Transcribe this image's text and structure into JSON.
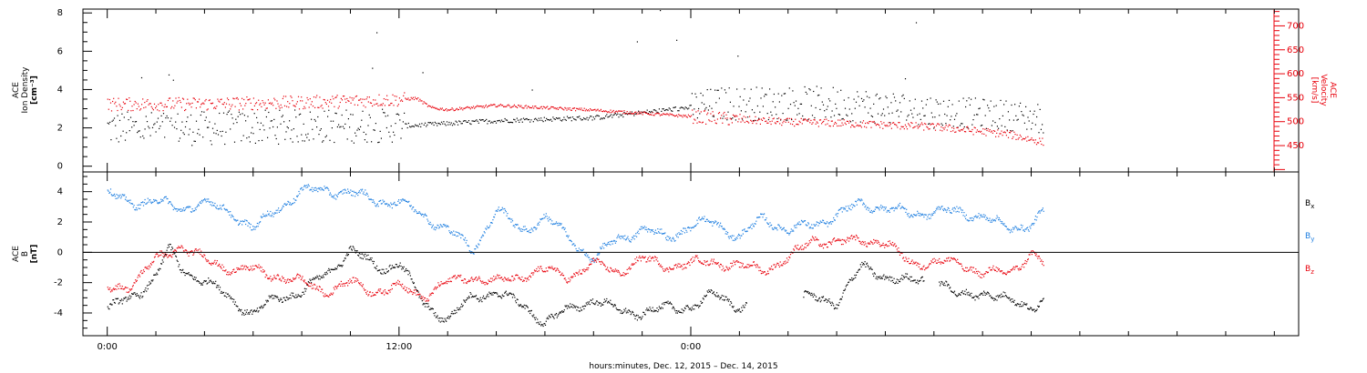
{
  "chart_data": [
    {
      "type": "scatter",
      "panel": "plasma",
      "ylabel_left": [
        "ACE",
        "Ion Density",
        "[cm⁻³]"
      ],
      "ylabel_right": [
        "ACE",
        "Velocity",
        "[km/s]"
      ],
      "ylim_left": [
        -0.3,
        8.2
      ],
      "ylim_right": [
        395,
        735
      ],
      "yticks_left": [
        "0",
        "2",
        "4",
        "6",
        "8"
      ],
      "yticks_right": [
        "450",
        "500",
        "550",
        "600",
        "650",
        "700"
      ],
      "xlim_hours": [
        -1,
        49
      ],
      "colors": {
        "density": "#000000",
        "velocity": "#e8000b"
      },
      "density_trend": {
        "x_hours": [
          0,
          4,
          8,
          12.5,
          13.3,
          16,
          20,
          24,
          25.5,
          30,
          34,
          37,
          38.5
        ],
        "y": [
          2.0,
          2.0,
          2.1,
          2.15,
          2.2,
          2.4,
          2.55,
          3.1,
          3.3,
          3.3,
          2.9,
          2.7,
          2.5
        ]
      },
      "velocity_trend": {
        "x_hours": [
          0,
          4,
          8,
          12.0,
          12.7,
          13.3,
          14.0,
          16,
          20,
          24,
          26,
          28,
          30,
          34,
          37,
          38.5
        ],
        "y": [
          537,
          538,
          541,
          547,
          550,
          530,
          526,
          535,
          525,
          512,
          505,
          500,
          498,
          490,
          475,
          458
        ]
      }
    },
    {
      "type": "scatter",
      "panel": "magnetic-field",
      "ylabel_left": [
        "ACE",
        "B",
        "[nT]"
      ],
      "ylim": [
        -5.5,
        5.3
      ],
      "yticks": [
        "-4",
        "-2",
        "0",
        "2",
        "4"
      ],
      "xlim_hours": [
        -1,
        49
      ],
      "zero_line": true,
      "series": [
        {
          "name": "Bx",
          "label": "B",
          "subscript": "x",
          "color": "#000000",
          "x_hours": [
            0,
            1,
            2,
            2.5,
            3,
            3.5,
            4,
            5,
            6,
            7,
            8,
            9,
            10,
            11,
            11.5,
            12,
            13,
            14,
            15,
            16,
            17,
            18,
            19,
            20,
            21,
            22,
            23,
            24,
            25,
            26,
            27,
            28,
            29,
            30,
            31,
            32,
            33,
            34,
            35,
            36,
            37,
            38,
            38.5
          ],
          "y": [
            -3.7,
            -3.0,
            -1.5,
            0.2,
            -1.0,
            -1.5,
            -1.8,
            -3.0,
            -4.0,
            -3.0,
            -2.5,
            -1.5,
            0.3,
            -1.0,
            -1.0,
            -0.5,
            -3.5,
            -4.3,
            -3.0,
            -2.5,
            -3.5,
            -4.5,
            -3.8,
            -3.0,
            -3.9,
            -3.9,
            -3.7,
            -3.5,
            -2.8,
            -3.5,
            -3.3,
            -3.0,
            -3.0,
            -3.2,
            -1.0,
            -1.5,
            -2.0,
            -1.5,
            -3.0,
            -2.5,
            -3.2,
            -3.5,
            -3.0
          ]
        },
        {
          "name": "By",
          "label": "B",
          "subscript": "y",
          "color": "#1f7fe0",
          "x_hours": [
            0,
            1,
            2,
            3,
            4,
            5,
            6,
            7,
            8,
            9,
            10,
            11,
            12,
            13,
            14,
            15,
            16,
            17,
            18,
            19,
            20,
            21,
            22,
            23,
            24,
            25,
            26,
            27,
            28,
            29,
            30,
            31,
            32,
            33,
            34,
            35,
            36,
            37,
            38,
            38.5
          ],
          "y": [
            3.8,
            3.4,
            3.3,
            3.0,
            3.2,
            2.8,
            1.5,
            3.0,
            4.0,
            4.2,
            3.9,
            3.5,
            3.3,
            2.5,
            1.5,
            0.2,
            2.8,
            1.5,
            2.3,
            1.0,
            -0.5,
            1.0,
            1.5,
            1.0,
            1.8,
            2.0,
            1.0,
            2.3,
            1.5,
            1.8,
            2.5,
            3.2,
            3.0,
            2.5,
            2.8,
            2.6,
            2.5,
            1.5,
            2.0,
            2.6
          ]
        },
        {
          "name": "Bz",
          "label": "B",
          "subscript": "z",
          "color": "#e8000b",
          "x_hours": [
            0,
            1,
            2,
            3,
            4,
            5,
            6,
            7,
            8,
            9,
            10,
            11,
            12,
            13,
            14,
            15,
            16,
            17,
            18,
            19,
            20,
            21,
            22,
            23,
            24,
            25,
            26,
            27,
            28,
            29,
            30,
            31,
            32,
            33,
            34,
            35,
            36,
            37,
            38,
            38.5
          ],
          "y": [
            -2.5,
            -2.0,
            -0.5,
            0.5,
            -0.5,
            -1.0,
            -1.2,
            -1.5,
            -2.0,
            -2.5,
            -2.0,
            -2.5,
            -2.3,
            -2.8,
            -2.0,
            -1.5,
            -2.0,
            -1.5,
            -1.2,
            -1.5,
            -0.8,
            -1.2,
            -0.5,
            -0.8,
            -0.8,
            -0.5,
            -1.0,
            -1.0,
            -0.5,
            1.0,
            0.5,
            1.0,
            0.5,
            -0.5,
            -0.8,
            -0.5,
            -1.5,
            -1.2,
            -0.2,
            -0.8
          ]
        }
      ]
    }
  ],
  "xaxis": {
    "major_ticks": [
      {
        "hours": 0,
        "label": "0:00"
      },
      {
        "hours": 12,
        "label": "12:00"
      },
      {
        "hours": 24,
        "label": "0:00"
      }
    ],
    "minor_tick_step_hours": 2,
    "title": "hours:minutes, Dec. 12, 2015 – Dec. 14, 2015"
  }
}
